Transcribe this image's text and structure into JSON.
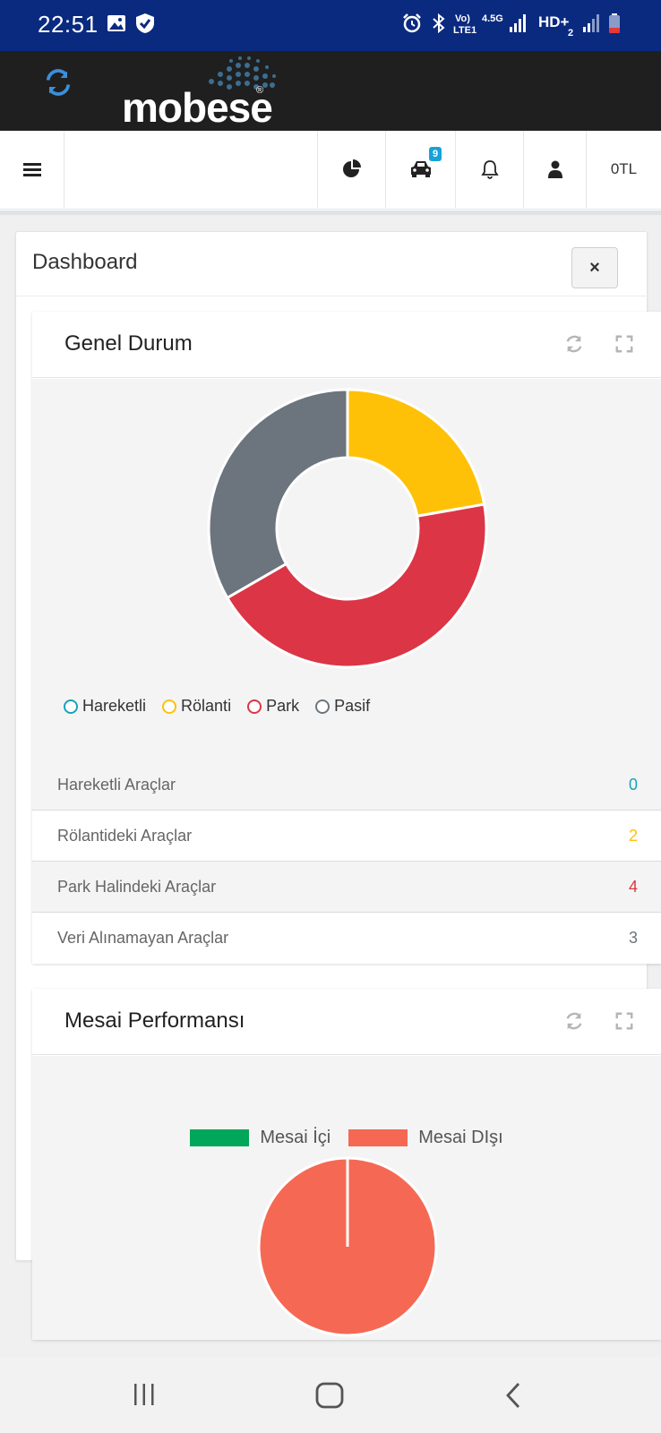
{
  "status_bar": {
    "time": "22:51",
    "network_volte": "Vo)",
    "network_lte": "LTE1",
    "network_45g": "4.5G",
    "hd_label": "HD+",
    "sim_number": "2",
    "icons": [
      "image-icon",
      "shield-app-icon",
      "alarm-icon",
      "bluetooth-icon",
      "signal-icon",
      "battery-icon"
    ]
  },
  "app_header": {
    "logo_text": "mobese",
    "registered_mark": "®",
    "icons": [
      "refresh-icon"
    ],
    "colors": {
      "background": "#1f1f1f",
      "refresh": "#3b8fd9"
    }
  },
  "nav": {
    "icons": [
      "menu-icon",
      "pie-chart-icon",
      "car-icon",
      "bell-icon",
      "user-icon"
    ],
    "car_badge": "9",
    "balance": "0TL"
  },
  "dashboard": {
    "title": "Dashboard",
    "close_label": "×"
  },
  "genel_durum": {
    "title": "Genel Durum",
    "icons": [
      "refresh-icon",
      "fullscreen-icon"
    ],
    "legend": [
      {
        "label": "Hareketli",
        "color": "#17a2b8"
      },
      {
        "label": "Rölanti",
        "color": "#ffc107"
      },
      {
        "label": "Park",
        "color": "#dc3545"
      },
      {
        "label": "Pasif",
        "color": "#6c757d"
      }
    ],
    "stats": [
      {
        "label": "Hareketli Araçlar",
        "value": "0",
        "color": "#17a2b8"
      },
      {
        "label": "Rölantideki Araçlar",
        "value": "2",
        "color": "#ffc107"
      },
      {
        "label": "Park Halindeki Araçlar",
        "value": "4",
        "color": "#dc3545"
      },
      {
        "label": "Veri Alınamayan Araçlar",
        "value": "3",
        "color": "#6c757d"
      }
    ]
  },
  "mesai": {
    "title": "Mesai Performansı",
    "icons": [
      "refresh-icon",
      "fullscreen-icon"
    ],
    "legend": [
      {
        "label": "Mesai İçi",
        "color": "#00a65a"
      },
      {
        "label": "Mesai DIşı",
        "color": "#f56954"
      }
    ]
  },
  "chart_data": [
    {
      "type": "pie",
      "variant": "doughnut",
      "categories": [
        "Hareketli",
        "Rölanti",
        "Park",
        "Pasif"
      ],
      "values": [
        0,
        2,
        4,
        3
      ],
      "colors": [
        "#17a2b8",
        "#ffc107",
        "#dc3545",
        "#6c757d"
      ],
      "legend_position": "bottom-left"
    },
    {
      "type": "pie",
      "categories": [
        "Mesai İçi",
        "Mesai DIşı"
      ],
      "values": [
        0,
        100
      ],
      "colors": [
        "#00a65a",
        "#f56954"
      ],
      "legend_position": "top"
    }
  ],
  "system_nav": {
    "icons": [
      "recent-apps-icon",
      "home-icon",
      "back-icon"
    ]
  }
}
